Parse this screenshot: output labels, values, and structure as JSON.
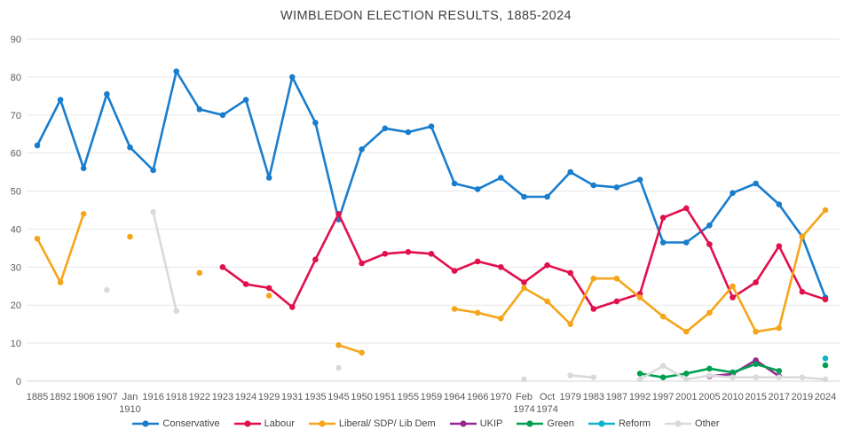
{
  "title": "WIMBLEDON ELECTION RESULTS, 1885-2024",
  "chart_data": {
    "type": "line",
    "title": "WIMBLEDON ELECTION RESULTS, 1885-2024",
    "xlabel": "",
    "ylabel": "",
    "ylim": [
      0,
      90
    ],
    "ytick_interval": 10,
    "grid": true,
    "legend_position": "bottom",
    "categories": [
      "1885",
      "1892",
      "1906",
      "1907",
      "Jan 1910",
      "1916",
      "1918",
      "1922",
      "1923",
      "1924",
      "1929",
      "1931",
      "1935",
      "1945",
      "1950",
      "1951",
      "1955",
      "1959",
      "1964",
      "1966",
      "1970",
      "Feb 1974",
      "Oct 1974",
      "1979",
      "1983",
      "1987",
      "1992",
      "1997",
      "2001",
      "2005",
      "2010",
      "2015",
      "2017",
      "2019",
      "2024"
    ],
    "series": [
      {
        "name": "Conservative",
        "color": "#197dcd",
        "values": [
          62,
          74,
          56,
          75.5,
          61.5,
          55.5,
          81.5,
          71.5,
          70,
          74,
          53.5,
          80,
          68,
          42.5,
          61,
          66.5,
          65.5,
          67,
          52,
          50.5,
          53.5,
          48.5,
          48.5,
          55,
          51.5,
          51,
          53,
          36.5,
          36.5,
          41,
          49.5,
          52,
          46.5,
          38,
          22
        ]
      },
      {
        "name": "Labour",
        "color": "#e10f4b",
        "values": [
          null,
          null,
          null,
          null,
          null,
          null,
          null,
          null,
          30,
          25.5,
          24.5,
          19.5,
          32,
          44,
          31,
          33.5,
          34,
          33.5,
          29,
          31.5,
          30,
          26,
          30.5,
          28.5,
          19,
          21,
          23,
          43,
          45.5,
          36,
          22,
          26,
          35.5,
          23.5,
          21.5
        ]
      },
      {
        "name": "Liberal/ SDP/ Lib Dem",
        "color": "#f5a519",
        "values": [
          37.5,
          26,
          44,
          null,
          38,
          null,
          null,
          28.5,
          null,
          null,
          22.5,
          null,
          null,
          9.5,
          7.5,
          null,
          null,
          null,
          19,
          18,
          16.5,
          24.5,
          21,
          15,
          27,
          27,
          22,
          17,
          13,
          18,
          25,
          13,
          14,
          38,
          45
        ]
      },
      {
        "name": "UKIP",
        "color": "#962891",
        "values": [
          null,
          null,
          null,
          null,
          null,
          null,
          null,
          null,
          null,
          null,
          null,
          null,
          null,
          null,
          null,
          null,
          null,
          null,
          null,
          null,
          null,
          null,
          null,
          null,
          null,
          null,
          null,
          null,
          null,
          1.3,
          1.9,
          5.5,
          1.3,
          null,
          null
        ]
      },
      {
        "name": "Green",
        "color": "#00a050",
        "values": [
          null,
          null,
          null,
          null,
          null,
          null,
          null,
          null,
          null,
          null,
          null,
          null,
          null,
          null,
          null,
          null,
          null,
          null,
          null,
          null,
          null,
          null,
          null,
          null,
          null,
          null,
          2,
          1,
          2,
          3.3,
          2.3,
          4.5,
          2.7,
          null,
          4.2
        ]
      },
      {
        "name": "Reform",
        "color": "#0fb4c8",
        "values": [
          null,
          null,
          null,
          null,
          null,
          null,
          null,
          null,
          null,
          null,
          null,
          null,
          null,
          null,
          null,
          null,
          null,
          null,
          null,
          null,
          null,
          null,
          null,
          null,
          null,
          null,
          null,
          null,
          null,
          null,
          null,
          null,
          null,
          null,
          6
        ]
      },
      {
        "name": "Other",
        "color": "#dadada",
        "values": [
          null,
          null,
          null,
          24,
          null,
          44.5,
          18.5,
          null,
          null,
          null,
          null,
          null,
          null,
          3.5,
          null,
          null,
          null,
          null,
          null,
          null,
          null,
          0.5,
          null,
          1.5,
          1,
          null,
          0.5,
          4,
          0.5,
          1.5,
          1,
          1,
          1,
          1,
          0.5
        ]
      }
    ]
  }
}
